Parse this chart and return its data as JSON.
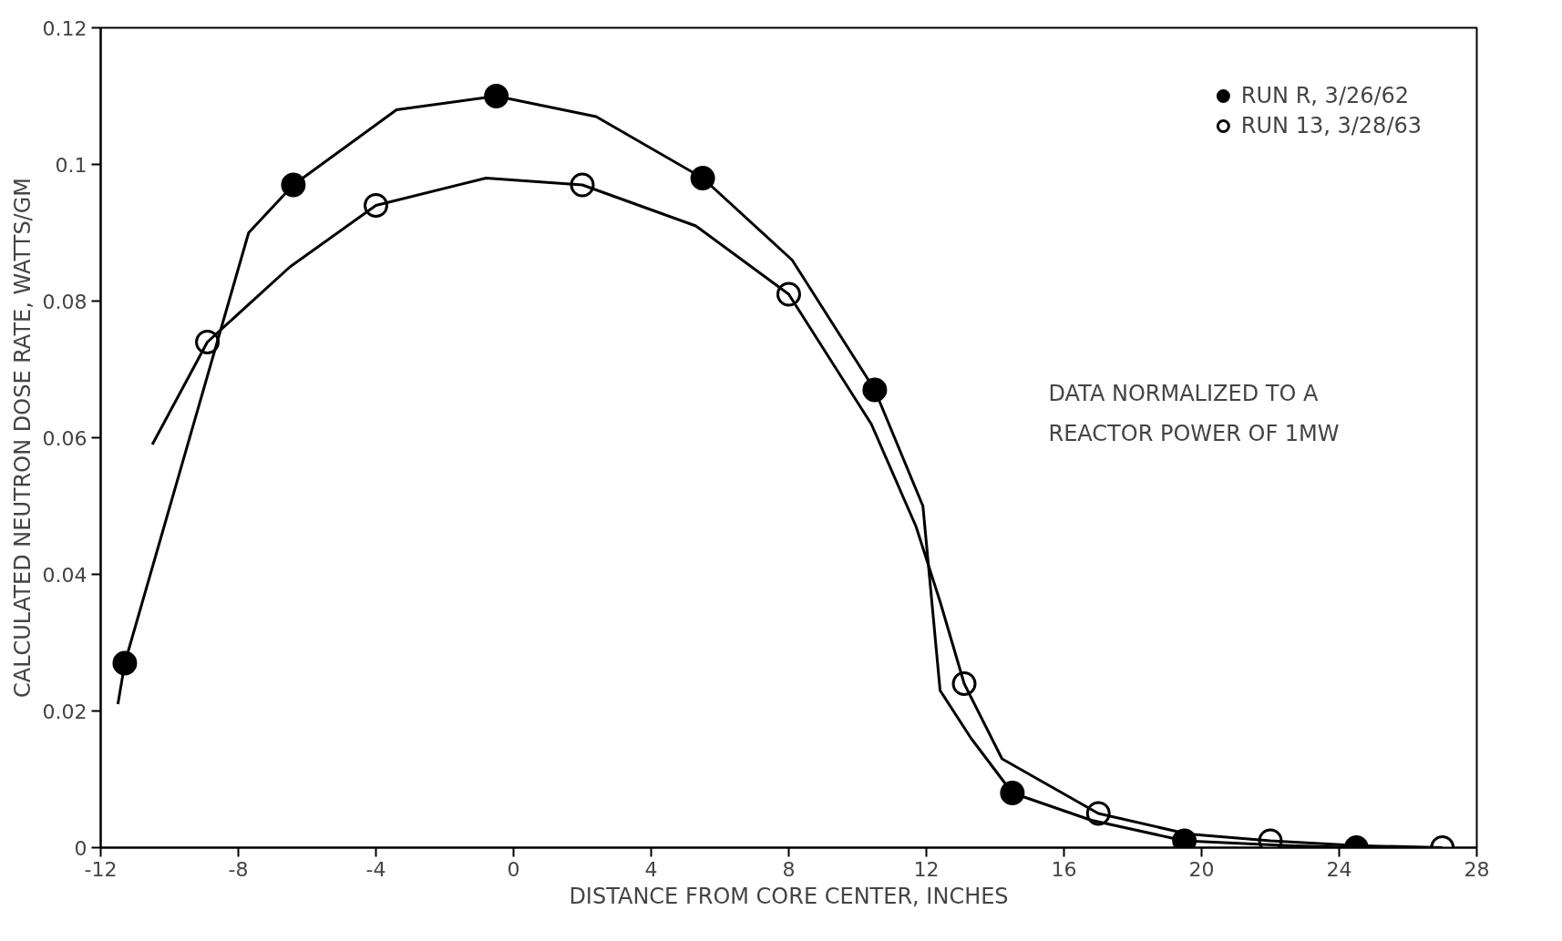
{
  "chart_data": {
    "type": "scatter",
    "xlabel": "DISTANCE FROM CORE CENTER, INCHES",
    "ylabel": "CALCULATED NEUTRON DOSE RATE, WATTS/GM",
    "xlim": [
      -12,
      28
    ],
    "xticks": [
      -12,
      -8,
      -4,
      0,
      4,
      8,
      12,
      16,
      20,
      24,
      28
    ],
    "ylim": [
      0,
      0.12
    ],
    "yticks": [
      0,
      0.02,
      0.04,
      0.06,
      0.08,
      0.1,
      0.12
    ],
    "grid": false,
    "legend": "top right",
    "annotations": [
      "DATA NORMALIZED TO A\nREACTOR POWER OF 1MW"
    ],
    "series": [
      {
        "name": "RUN R, 3/26/62",
        "color": "#000000",
        "marker": "circle",
        "x": [
          -11.3,
          -6.4,
          -0.5,
          5.5,
          10.5,
          14.5,
          19.5,
          24.5
        ],
        "values": [
          0.027,
          0.097,
          0.11,
          0.098,
          0.067,
          0.008,
          0.001,
          0.0
        ]
      },
      {
        "name": "RUN 13, 3/28/63",
        "color": "#ffffff",
        "marker": "circle",
        "x": [
          -8.9,
          -4.0,
          2.0,
          8.0,
          13.1,
          17.0,
          22.0,
          27.0
        ],
        "values": [
          0.074,
          0.094,
          0.097,
          0.081,
          0.024,
          0.005,
          0.001,
          0.0
        ]
      },
      {
        "type": "line",
        "marker": "none",
        "color": "#000000",
        "x": [
          -11.5,
          -11.3,
          -7.7,
          -6.4,
          -3.4,
          -0.5,
          2.4,
          5.5,
          8.1,
          10.5,
          11.9,
          12.4,
          13.3,
          14.5,
          16.8,
          19.5,
          22.5,
          24.5,
          25.5
        ],
        "values": [
          0.021,
          0.027,
          0.09,
          0.097,
          0.108,
          0.11,
          0.107,
          0.098,
          0.086,
          0.067,
          0.05,
          0.023,
          0.016,
          0.008,
          0.004,
          0.001,
          0.0003,
          0.0,
          0.0
        ]
      },
      {
        "type": "line",
        "marker": "none",
        "color": "#000000",
        "x": [
          -10.5,
          -8.9,
          -6.5,
          -4.0,
          -0.8,
          2.0,
          5.3,
          8.0,
          10.4,
          11.7,
          12.4,
          13.1,
          14.2,
          17.0,
          19.6,
          22.0,
          24.5,
          27.0
        ],
        "values": [
          0.059,
          0.074,
          0.085,
          0.094,
          0.098,
          0.097,
          0.091,
          0.081,
          0.062,
          0.047,
          0.036,
          0.024,
          0.013,
          0.005,
          0.002,
          0.001,
          0.0003,
          0.0
        ]
      }
    ]
  }
}
